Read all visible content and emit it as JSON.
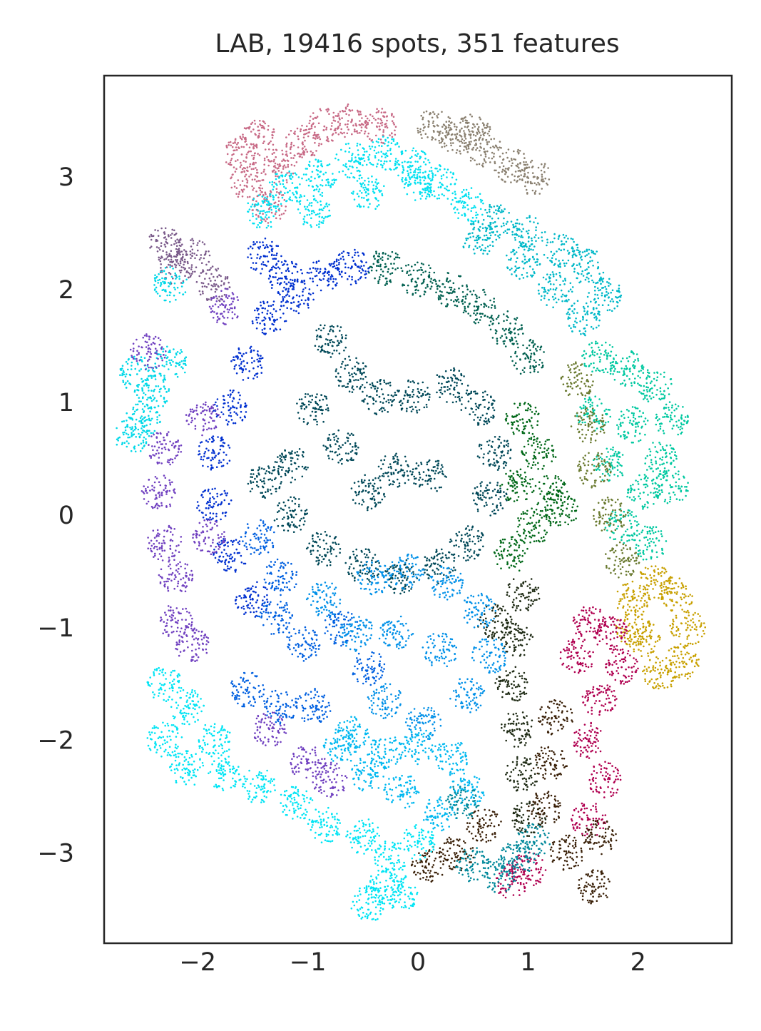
{
  "chart_data": {
    "type": "scatter",
    "title": "LAB, 19416 spots, 351 features",
    "xlabel": "",
    "ylabel": "",
    "xlim": [
      -2.85,
      2.85
    ],
    "ylim": [
      -3.8,
      3.9
    ],
    "xticks": [
      -2,
      -1,
      0,
      1,
      2
    ],
    "xtick_labels": [
      "−2",
      "−1",
      "0",
      "1",
      "2"
    ],
    "yticks": [
      -3,
      -2,
      -1,
      0,
      1,
      2,
      3
    ],
    "ytick_labels": [
      "−3",
      "−2",
      "−1",
      "0",
      "1",
      "2",
      "3"
    ],
    "grid": false,
    "legend": "none",
    "point_color_note": "each spot colored by its LAB color value",
    "regions": [
      {
        "color": "#c86a86",
        "points": [
          [
            -1.6,
            3.2
          ],
          [
            -1.45,
            3.35
          ],
          [
            -1.25,
            3.1
          ],
          [
            -1.05,
            3.3
          ],
          [
            -0.85,
            3.45
          ],
          [
            -0.6,
            3.5
          ],
          [
            -0.35,
            3.45
          ],
          [
            -1.55,
            2.95
          ],
          [
            -1.35,
            2.75
          ]
        ]
      },
      {
        "color": "#8a8070",
        "points": [
          [
            0.15,
            3.45
          ],
          [
            0.35,
            3.35
          ],
          [
            0.6,
            3.25
          ],
          [
            0.85,
            3.1
          ],
          [
            1.05,
            3.0
          ],
          [
            0.5,
            3.4
          ]
        ]
      },
      {
        "color": "#00e0f0",
        "points": [
          [
            -1.2,
            2.9
          ],
          [
            -0.9,
            3.0
          ],
          [
            -0.6,
            3.15
          ],
          [
            -0.3,
            3.2
          ],
          [
            -0.05,
            3.1
          ],
          [
            0.2,
            2.95
          ],
          [
            -0.45,
            2.85
          ],
          [
            -0.95,
            2.7
          ],
          [
            -1.4,
            2.7
          ],
          [
            0.45,
            2.75
          ],
          [
            0.0,
            2.95
          ]
        ]
      },
      {
        "color": "#00b8c8",
        "points": [
          [
            0.7,
            2.6
          ],
          [
            1.0,
            2.5
          ],
          [
            1.3,
            2.35
          ],
          [
            1.55,
            2.2
          ],
          [
            1.7,
            1.95
          ],
          [
            1.5,
            1.75
          ],
          [
            1.25,
            2.0
          ],
          [
            0.95,
            2.25
          ],
          [
            0.55,
            2.45
          ]
        ]
      },
      {
        "color": "#7a5a8a",
        "points": [
          [
            -2.3,
            2.4
          ],
          [
            -2.2,
            2.2
          ],
          [
            -2.05,
            2.3
          ],
          [
            -1.85,
            2.05
          ]
        ]
      },
      {
        "color": "#00c8a0",
        "points": [
          [
            1.65,
            1.4
          ],
          [
            1.9,
            1.3
          ],
          [
            2.15,
            1.15
          ],
          [
            2.3,
            0.85
          ],
          [
            2.2,
            0.5
          ],
          [
            2.05,
            0.2
          ],
          [
            1.85,
            -0.1
          ],
          [
            1.75,
            0.45
          ],
          [
            1.95,
            0.8
          ],
          [
            2.3,
            0.25
          ],
          [
            1.6,
            0.9
          ],
          [
            2.1,
            -0.25
          ]
        ]
      },
      {
        "color": "#0030d0",
        "points": [
          [
            -1.4,
            2.3
          ],
          [
            -1.2,
            2.1
          ],
          [
            -1.35,
            1.75
          ],
          [
            -1.55,
            1.35
          ],
          [
            -1.7,
            0.95
          ],
          [
            -1.85,
            0.55
          ],
          [
            -1.85,
            0.1
          ],
          [
            -1.7,
            -0.35
          ],
          [
            -1.5,
            -0.75
          ],
          [
            -1.1,
            1.95
          ],
          [
            -0.85,
            2.15
          ],
          [
            -0.6,
            2.2
          ]
        ]
      },
      {
        "color": "#006050",
        "points": [
          [
            -0.3,
            2.2
          ],
          [
            0.0,
            2.1
          ],
          [
            0.3,
            2.0
          ],
          [
            0.55,
            1.85
          ],
          [
            0.8,
            1.65
          ],
          [
            1.0,
            1.4
          ]
        ]
      },
      {
        "color": "#004858",
        "points": [
          [
            -0.8,
            1.55
          ],
          [
            -0.6,
            1.25
          ],
          [
            -0.35,
            1.05
          ],
          [
            -0.05,
            1.05
          ],
          [
            0.3,
            1.15
          ],
          [
            0.55,
            0.95
          ],
          [
            0.7,
            0.55
          ],
          [
            0.65,
            0.15
          ],
          [
            0.45,
            -0.25
          ],
          [
            0.2,
            -0.45
          ],
          [
            -0.15,
            -0.55
          ],
          [
            -0.5,
            -0.45
          ],
          [
            -0.85,
            -0.3
          ],
          [
            -1.15,
            0.0
          ],
          [
            -1.4,
            0.3
          ],
          [
            -1.15,
            0.45
          ],
          [
            -0.7,
            0.6
          ],
          [
            -0.45,
            0.2
          ],
          [
            -0.2,
            0.4
          ],
          [
            0.1,
            0.35
          ],
          [
            -0.95,
            0.95
          ]
        ]
      },
      {
        "color": "#006818",
        "points": [
          [
            0.95,
            0.85
          ],
          [
            1.1,
            0.55
          ],
          [
            1.2,
            0.2
          ],
          [
            1.05,
            -0.1
          ],
          [
            0.85,
            -0.35
          ],
          [
            1.3,
            0.05
          ],
          [
            0.9,
            0.25
          ]
        ]
      },
      {
        "color": "#1e2a14",
        "points": [
          [
            0.95,
            -0.7
          ],
          [
            0.9,
            -1.1
          ],
          [
            0.85,
            -1.5
          ],
          [
            0.9,
            -1.9
          ],
          [
            0.95,
            -2.3
          ],
          [
            1.0,
            -2.7
          ],
          [
            0.7,
            -0.95
          ]
        ]
      },
      {
        "color": "#6a7a30",
        "points": [
          [
            1.45,
            1.2
          ],
          [
            1.55,
            0.8
          ],
          [
            1.6,
            0.4
          ],
          [
            1.75,
            0.0
          ],
          [
            1.85,
            -0.4
          ]
        ]
      },
      {
        "color": "#c8a000",
        "points": [
          [
            1.95,
            -0.75
          ],
          [
            2.15,
            -0.6
          ],
          [
            2.35,
            -0.7
          ],
          [
            2.45,
            -1.0
          ],
          [
            2.4,
            -1.3
          ],
          [
            2.2,
            -1.4
          ],
          [
            2.05,
            -1.1
          ],
          [
            1.95,
            -1.0
          ]
        ]
      },
      {
        "color": "#b00050",
        "points": [
          [
            1.55,
            -0.95
          ],
          [
            1.75,
            -1.05
          ],
          [
            1.85,
            -1.35
          ],
          [
            1.65,
            -1.65
          ],
          [
            1.55,
            -2.0
          ],
          [
            1.7,
            -2.35
          ],
          [
            1.55,
            -2.7
          ],
          [
            1.45,
            -1.25
          ],
          [
            0.85,
            -3.25
          ],
          [
            1.0,
            -3.15
          ]
        ]
      },
      {
        "color": "#3a2008",
        "points": [
          [
            1.25,
            -1.8
          ],
          [
            1.2,
            -2.2
          ],
          [
            1.15,
            -2.6
          ],
          [
            1.35,
            -3.0
          ],
          [
            1.6,
            -3.3
          ],
          [
            0.6,
            -2.75
          ],
          [
            0.35,
            -3.0
          ],
          [
            0.1,
            -3.1
          ],
          [
            1.65,
            -2.85
          ]
        ]
      },
      {
        "color": "#0060e0",
        "points": [
          [
            -1.3,
            -0.9
          ],
          [
            -1.05,
            -1.15
          ],
          [
            -0.7,
            -1.0
          ],
          [
            -0.45,
            -1.35
          ],
          [
            -1.55,
            -1.55
          ],
          [
            -1.25,
            -1.7
          ],
          [
            -0.95,
            -1.7
          ],
          [
            -1.45,
            -0.2
          ],
          [
            -1.25,
            -0.55
          ]
        ]
      },
      {
        "color": "#0090e8",
        "points": [
          [
            -0.4,
            -0.55
          ],
          [
            -0.1,
            -0.5
          ],
          [
            0.25,
            -0.6
          ],
          [
            0.55,
            -0.85
          ],
          [
            0.65,
            -1.25
          ],
          [
            0.45,
            -1.6
          ],
          [
            0.05,
            -1.85
          ],
          [
            -0.3,
            -1.65
          ],
          [
            -0.55,
            -1.05
          ],
          [
            -0.2,
            -1.05
          ],
          [
            0.2,
            -1.2
          ],
          [
            -0.85,
            -0.75
          ]
        ]
      },
      {
        "color": "#00b8f0",
        "points": [
          [
            -0.6,
            -1.95
          ],
          [
            -0.3,
            -2.1
          ],
          [
            0.0,
            -2.05
          ],
          [
            0.3,
            -2.15
          ],
          [
            0.45,
            -2.45
          ],
          [
            0.2,
            -2.65
          ],
          [
            -0.15,
            -2.45
          ],
          [
            -0.45,
            -2.3
          ],
          [
            -0.7,
            -2.05
          ]
        ]
      },
      {
        "color": "#00e4f4",
        "points": [
          [
            -2.3,
            -1.5
          ],
          [
            -2.1,
            -1.7
          ],
          [
            -2.3,
            -2.0
          ],
          [
            -2.1,
            -2.25
          ],
          [
            -1.85,
            -2.0
          ],
          [
            -1.75,
            -2.3
          ],
          [
            -1.45,
            -2.4
          ],
          [
            -1.1,
            -2.55
          ],
          [
            -0.85,
            -2.75
          ],
          [
            -0.5,
            -2.85
          ],
          [
            -0.25,
            -3.05
          ],
          [
            -0.3,
            -3.3
          ],
          [
            -0.45,
            -3.45
          ],
          [
            -0.15,
            -3.35
          ],
          [
            0.0,
            -2.9
          ]
        ]
      },
      {
        "color": "#00d8e8",
        "points": [
          [
            -2.55,
            1.25
          ],
          [
            -2.4,
            1.1
          ],
          [
            -2.5,
            0.85
          ],
          [
            -2.6,
            0.7
          ],
          [
            -2.25,
            1.35
          ],
          [
            -2.25,
            2.05
          ]
        ]
      },
      {
        "color": "#7040c0",
        "points": [
          [
            -2.45,
            1.45
          ],
          [
            -2.3,
            0.6
          ],
          [
            -2.35,
            0.2
          ],
          [
            -2.3,
            -0.25
          ],
          [
            -2.2,
            -0.55
          ],
          [
            -2.2,
            -0.95
          ],
          [
            -2.05,
            -1.15
          ],
          [
            -1.9,
            -0.2
          ],
          [
            -1.95,
            0.85
          ],
          [
            -1.75,
            1.85
          ],
          [
            -1.35,
            -1.9
          ],
          [
            -1.0,
            -2.2
          ],
          [
            -0.8,
            -2.35
          ]
        ]
      },
      {
        "color": "#00889a",
        "points": [
          [
            0.75,
            -3.2
          ],
          [
            0.9,
            -3.05
          ],
          [
            1.05,
            -2.9
          ],
          [
            0.4,
            -2.55
          ],
          [
            0.5,
            -3.1
          ]
        ]
      }
    ]
  }
}
